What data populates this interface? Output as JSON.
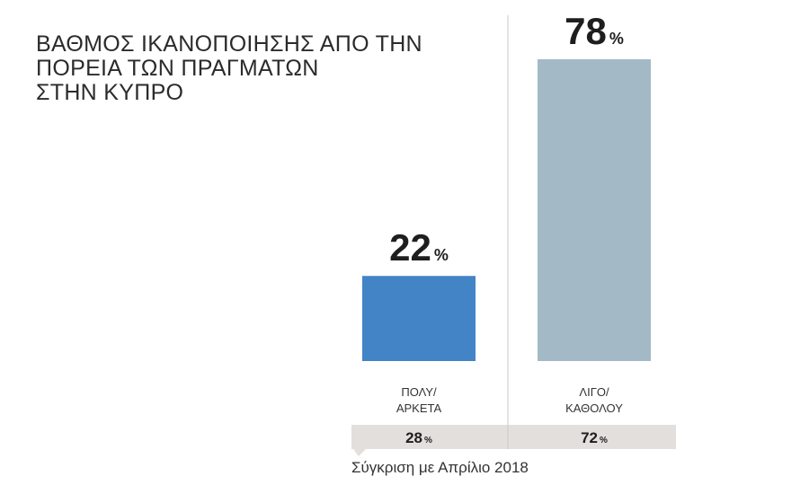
{
  "chart_data": {
    "type": "bar",
    "title_lines": [
      "ΒΑΘΜΟΣ ΙΚΑΝΟΠΟΙΗΣΗΣ ΑΠΟ ΤΗΝ",
      "ΠΟΡΕΙΑ ΤΩΝ ΠΡΑΓΜΑΤΩΝ",
      "ΣΤΗΝ ΚΥΠΡΟ"
    ],
    "categories": [
      {
        "lines": [
          "ΠΟΛΥ/",
          "ΑΡΚΕΤΑ"
        ]
      },
      {
        "lines": [
          "ΛΙΓΟ/",
          "ΚΑΘΟΛΟΥ"
        ]
      }
    ],
    "values": [
      22,
      78
    ],
    "value_unit": "%",
    "ylim": [
      0,
      78
    ],
    "colors": [
      "#4384c6",
      "#a4b9c6"
    ],
    "comparison": {
      "values": [
        28,
        72
      ],
      "unit": "%",
      "caption": "Σύγκριση με Απρίλιο 2018",
      "band_color": "#e3dfdd"
    },
    "divider_color": "#c9c9c9"
  }
}
